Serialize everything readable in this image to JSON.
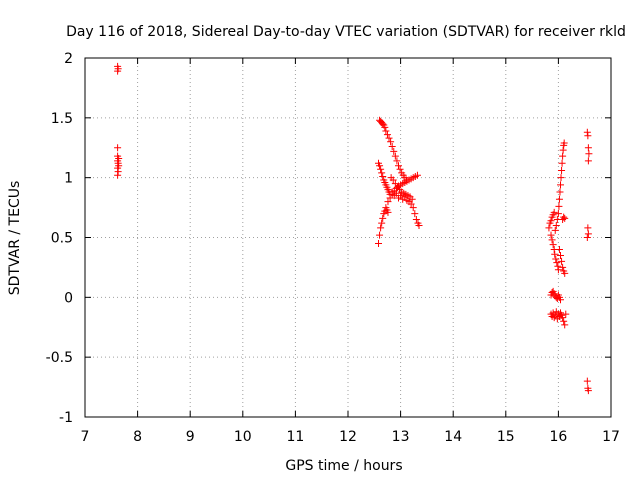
{
  "chart_data": {
    "type": "scatter",
    "title": "Day 116 of 2018, Sidereal Day-to-day VTEC variation (SDTVAR) for receiver rkld",
    "xlabel": "GPS time / hours",
    "ylabel": "SDTVAR / TECUs",
    "xlim": [
      7,
      17
    ],
    "ylim": [
      -1,
      2
    ],
    "x_ticks": [
      "7",
      "8",
      "9",
      "10",
      "11",
      "12",
      "13",
      "14",
      "15",
      "16",
      "17"
    ],
    "y_ticks": [
      "-1",
      "-0.5",
      "0",
      "0.5",
      "1",
      "1.5",
      "2"
    ],
    "x_tick_values": [
      7,
      8,
      9,
      10,
      11,
      12,
      13,
      14,
      15,
      16,
      17
    ],
    "y_tick_values": [
      -1,
      -0.5,
      0,
      0.5,
      1,
      1.5,
      2
    ],
    "grid": true,
    "marker": "+",
    "marker_color": "#ff0000",
    "series": [
      {
        "points": [
          [
            7.62,
            1.93
          ],
          [
            7.63,
            1.91
          ],
          [
            7.62,
            1.89
          ],
          [
            7.62,
            1.25
          ],
          [
            7.62,
            1.18
          ],
          [
            7.64,
            1.16
          ],
          [
            7.62,
            1.14
          ],
          [
            7.63,
            1.12
          ],
          [
            7.64,
            1.1
          ],
          [
            7.62,
            1.08
          ],
          [
            7.63,
            1.05
          ],
          [
            7.62,
            1.02
          ],
          [
            12.58,
            0.45
          ],
          [
            12.6,
            0.52
          ],
          [
            12.62,
            0.58
          ],
          [
            12.64,
            0.62
          ],
          [
            12.66,
            0.66
          ],
          [
            12.68,
            0.7
          ],
          [
            12.7,
            0.72
          ],
          [
            12.72,
            0.75
          ],
          [
            12.74,
            0.73
          ],
          [
            12.76,
            0.71
          ],
          [
            12.58,
            1.12
          ],
          [
            12.6,
            1.1
          ],
          [
            12.62,
            1.07
          ],
          [
            12.64,
            1.04
          ],
          [
            12.66,
            1.01
          ],
          [
            12.68,
            0.98
          ],
          [
            12.7,
            0.96
          ],
          [
            12.72,
            0.94
          ],
          [
            12.74,
            0.92
          ],
          [
            12.76,
            0.9
          ],
          [
            12.78,
            0.88
          ],
          [
            12.8,
            0.86
          ],
          [
            12.6,
            1.48
          ],
          [
            12.62,
            1.47
          ],
          [
            12.64,
            1.46
          ],
          [
            12.66,
            1.45
          ],
          [
            12.68,
            1.44
          ],
          [
            12.7,
            1.42
          ],
          [
            12.72,
            1.39
          ],
          [
            12.75,
            1.36
          ],
          [
            12.78,
            1.33
          ],
          [
            12.81,
            1.3
          ],
          [
            12.84,
            1.26
          ],
          [
            12.87,
            1.22
          ],
          [
            12.9,
            1.18
          ],
          [
            12.93,
            1.14
          ],
          [
            12.96,
            1.1
          ],
          [
            12.99,
            1.07
          ],
          [
            13.02,
            1.04
          ],
          [
            13.05,
            1.02
          ],
          [
            13.08,
            1.0
          ],
          [
            13.11,
            0.98
          ],
          [
            12.76,
            0.8
          ],
          [
            12.8,
            0.83
          ],
          [
            12.84,
            0.86
          ],
          [
            12.88,
            0.89
          ],
          [
            12.92,
            0.91
          ],
          [
            12.96,
            0.93
          ],
          [
            13.0,
            0.94
          ],
          [
            13.04,
            0.95
          ],
          [
            13.08,
            0.96
          ],
          [
            13.12,
            0.97
          ],
          [
            13.16,
            0.98
          ],
          [
            13.2,
            0.99
          ],
          [
            13.24,
            1.0
          ],
          [
            13.28,
            1.01
          ],
          [
            13.32,
            1.02
          ],
          [
            12.82,
            1.0
          ],
          [
            12.86,
            0.98
          ],
          [
            12.9,
            0.95
          ],
          [
            12.94,
            0.92
          ],
          [
            12.98,
            0.9
          ],
          [
            13.02,
            0.88
          ],
          [
            13.06,
            0.87
          ],
          [
            13.1,
            0.86
          ],
          [
            13.14,
            0.85
          ],
          [
            13.18,
            0.84
          ],
          [
            13.22,
            0.82
          ],
          [
            12.84,
            0.88
          ],
          [
            12.88,
            0.85
          ],
          [
            12.92,
            0.87
          ],
          [
            12.96,
            0.83
          ],
          [
            13.0,
            0.85
          ],
          [
            13.04,
            0.82
          ],
          [
            13.08,
            0.84
          ],
          [
            13.12,
            0.81
          ],
          [
            13.16,
            0.8
          ],
          [
            13.2,
            0.78
          ],
          [
            13.24,
            0.75
          ],
          [
            13.27,
            0.7
          ],
          [
            13.3,
            0.65
          ],
          [
            13.33,
            0.62
          ],
          [
            13.35,
            0.6
          ],
          [
            15.82,
            0.58
          ],
          [
            15.84,
            0.62
          ],
          [
            15.86,
            0.64
          ],
          [
            15.88,
            0.67
          ],
          [
            15.9,
            0.69
          ],
          [
            15.92,
            0.71
          ],
          [
            15.86,
            0.52
          ],
          [
            15.88,
            0.48
          ],
          [
            15.9,
            0.44
          ],
          [
            15.92,
            0.4
          ],
          [
            15.93,
            0.36
          ],
          [
            15.95,
            0.32
          ],
          [
            15.97,
            0.29
          ],
          [
            15.99,
            0.26
          ],
          [
            16.0,
            0.23
          ],
          [
            15.94,
            0.56
          ],
          [
            15.96,
            0.6
          ],
          [
            15.98,
            0.65
          ],
          [
            16.0,
            0.7
          ],
          [
            16.01,
            0.76
          ],
          [
            16.02,
            0.82
          ],
          [
            16.03,
            0.88
          ],
          [
            16.04,
            0.94
          ],
          [
            16.05,
            1.0
          ],
          [
            16.06,
            1.06
          ],
          [
            16.07,
            1.12
          ],
          [
            16.08,
            1.18
          ],
          [
            16.09,
            1.23
          ],
          [
            16.1,
            1.27
          ],
          [
            16.11,
            1.29
          ],
          [
            16.02,
            0.4
          ],
          [
            16.04,
            0.35
          ],
          [
            16.06,
            0.3
          ],
          [
            16.08,
            0.25
          ],
          [
            16.1,
            0.22
          ],
          [
            16.12,
            0.2
          ],
          [
            16.08,
            0.65
          ],
          [
            16.1,
            0.67
          ],
          [
            16.12,
            0.66
          ],
          [
            15.86,
            0.02
          ],
          [
            15.88,
            0.04
          ],
          [
            15.9,
            0.05
          ],
          [
            15.92,
            0.03
          ],
          [
            15.94,
            0.01
          ],
          [
            15.96,
            0.0
          ],
          [
            15.98,
            -0.01
          ],
          [
            16.0,
            0.02
          ],
          [
            16.02,
            0.0
          ],
          [
            16.04,
            -0.02
          ],
          [
            15.86,
            -0.14
          ],
          [
            15.88,
            -0.16
          ],
          [
            15.9,
            -0.13
          ],
          [
            15.92,
            -0.17
          ],
          [
            15.94,
            -0.15
          ],
          [
            15.96,
            -0.12
          ],
          [
            15.98,
            -0.18
          ],
          [
            16.0,
            -0.14
          ],
          [
            16.02,
            -0.16
          ],
          [
            16.04,
            -0.13
          ],
          [
            16.06,
            -0.15
          ],
          [
            16.08,
            -0.17
          ],
          [
            16.1,
            -0.2
          ],
          [
            16.12,
            -0.23
          ],
          [
            16.14,
            -0.14
          ],
          [
            16.55,
            1.38
          ],
          [
            16.56,
            1.35
          ],
          [
            16.57,
            1.25
          ],
          [
            16.58,
            1.2
          ],
          [
            16.57,
            1.14
          ],
          [
            16.56,
            0.58
          ],
          [
            16.57,
            0.53
          ],
          [
            16.55,
            0.5
          ],
          [
            16.55,
            -0.7
          ],
          [
            16.56,
            -0.76
          ],
          [
            16.57,
            -0.78
          ]
        ]
      }
    ]
  }
}
